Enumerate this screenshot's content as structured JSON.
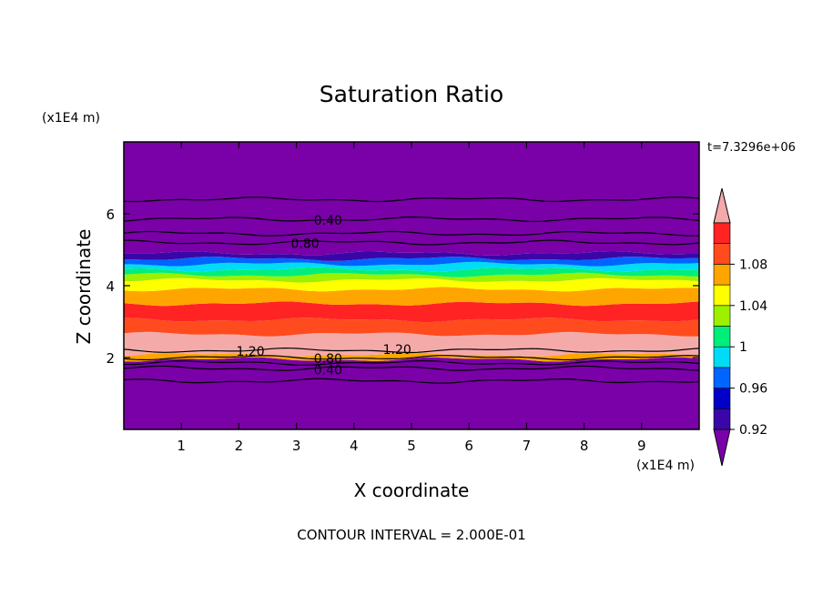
{
  "chart_data": {
    "type": "heatmap",
    "title": "Saturation Ratio",
    "xlabel": "X coordinate",
    "ylabel": "Z coordinate",
    "x_unit": "(x1E4 m)",
    "y_unit": "(x1E4 m)",
    "time_label": "t=7.3296e+06",
    "footer": "CONTOUR INTERVAL = 2.000E-01",
    "xlim": [
      0,
      10
    ],
    "ylim": [
      0,
      8
    ],
    "x_ticks": [
      "1",
      "2",
      "3",
      "4",
      "5",
      "6",
      "7",
      "8",
      "9"
    ],
    "y_ticks": [
      "2",
      "4",
      "6"
    ],
    "colorbar": {
      "tick_labels": [
        "1.08",
        "1.04",
        "1",
        "0.96",
        "0.92"
      ],
      "levels": [
        {
          "color": "#7a00a8",
          "level": "below"
        },
        {
          "color": "#3a06a8",
          "level": "0.92"
        },
        {
          "color": "#0000c8",
          "level": "0.94"
        },
        {
          "color": "#0064ff",
          "level": "0.96"
        },
        {
          "color": "#00dcf5",
          "level": "0.98"
        },
        {
          "color": "#00ee7a",
          "level": "1.00"
        },
        {
          "color": "#9cf000",
          "level": "1.02"
        },
        {
          "color": "#ffff00",
          "level": "1.04"
        },
        {
          "color": "#ffa500",
          "level": "1.06"
        },
        {
          "color": "#ff4b1e",
          "level": "1.08"
        },
        {
          "color": "#ff2323",
          "level": "1.10"
        },
        {
          "color": "#f5aaaa",
          "level": "above"
        }
      ]
    },
    "bands": [
      {
        "z_bottom": 0.0,
        "z_top": 1.95,
        "color": "#7a00a8"
      },
      {
        "z_bottom": 1.95,
        "z_top": 2.08,
        "color": "#ffa500"
      },
      {
        "z_bottom": 2.08,
        "z_top": 2.65,
        "color": "#f5aaaa"
      },
      {
        "z_bottom": 2.65,
        "z_top": 3.05,
        "color": "#ff4b1e"
      },
      {
        "z_bottom": 3.05,
        "z_top": 3.5,
        "color": "#ff2323"
      },
      {
        "z_bottom": 3.5,
        "z_top": 3.9,
        "color": "#ffa500"
      },
      {
        "z_bottom": 3.9,
        "z_top": 4.15,
        "color": "#ffff00"
      },
      {
        "z_bottom": 4.15,
        "z_top": 4.3,
        "color": "#9cf000"
      },
      {
        "z_bottom": 4.3,
        "z_top": 4.45,
        "color": "#00ee7a"
      },
      {
        "z_bottom": 4.45,
        "z_top": 4.6,
        "color": "#00dcf5"
      },
      {
        "z_bottom": 4.6,
        "z_top": 4.75,
        "color": "#0064ff"
      },
      {
        "z_bottom": 4.75,
        "z_top": 4.9,
        "color": "#3a06a8"
      },
      {
        "z_bottom": 4.9,
        "z_top": 8.0,
        "color": "#7a00a8"
      }
    ],
    "contours": [
      {
        "z": 6.4,
        "label": ""
      },
      {
        "z": 5.85,
        "label": "0.40"
      },
      {
        "z": 5.45,
        "label": ""
      },
      {
        "z": 5.2,
        "label": "0.80"
      },
      {
        "z": 2.2,
        "label": "1.20"
      },
      {
        "z": 2.0,
        "label": "0.80"
      },
      {
        "z": 1.85,
        "label": "0.40"
      },
      {
        "z": 1.7,
        "label": ""
      },
      {
        "z": 1.35,
        "label": ""
      }
    ],
    "contour_label_positions": [
      {
        "label": "0.40",
        "x": 3.55,
        "z": 5.85
      },
      {
        "label": "0.80",
        "x": 3.15,
        "z": 5.2
      },
      {
        "label": "1.20",
        "x": 2.2,
        "z": 2.2
      },
      {
        "label": "1.20",
        "x": 4.75,
        "z": 2.25
      },
      {
        "label": "0.80",
        "x": 3.55,
        "z": 2.0
      },
      {
        "label": "0.40",
        "x": 3.55,
        "z": 1.68
      }
    ]
  }
}
